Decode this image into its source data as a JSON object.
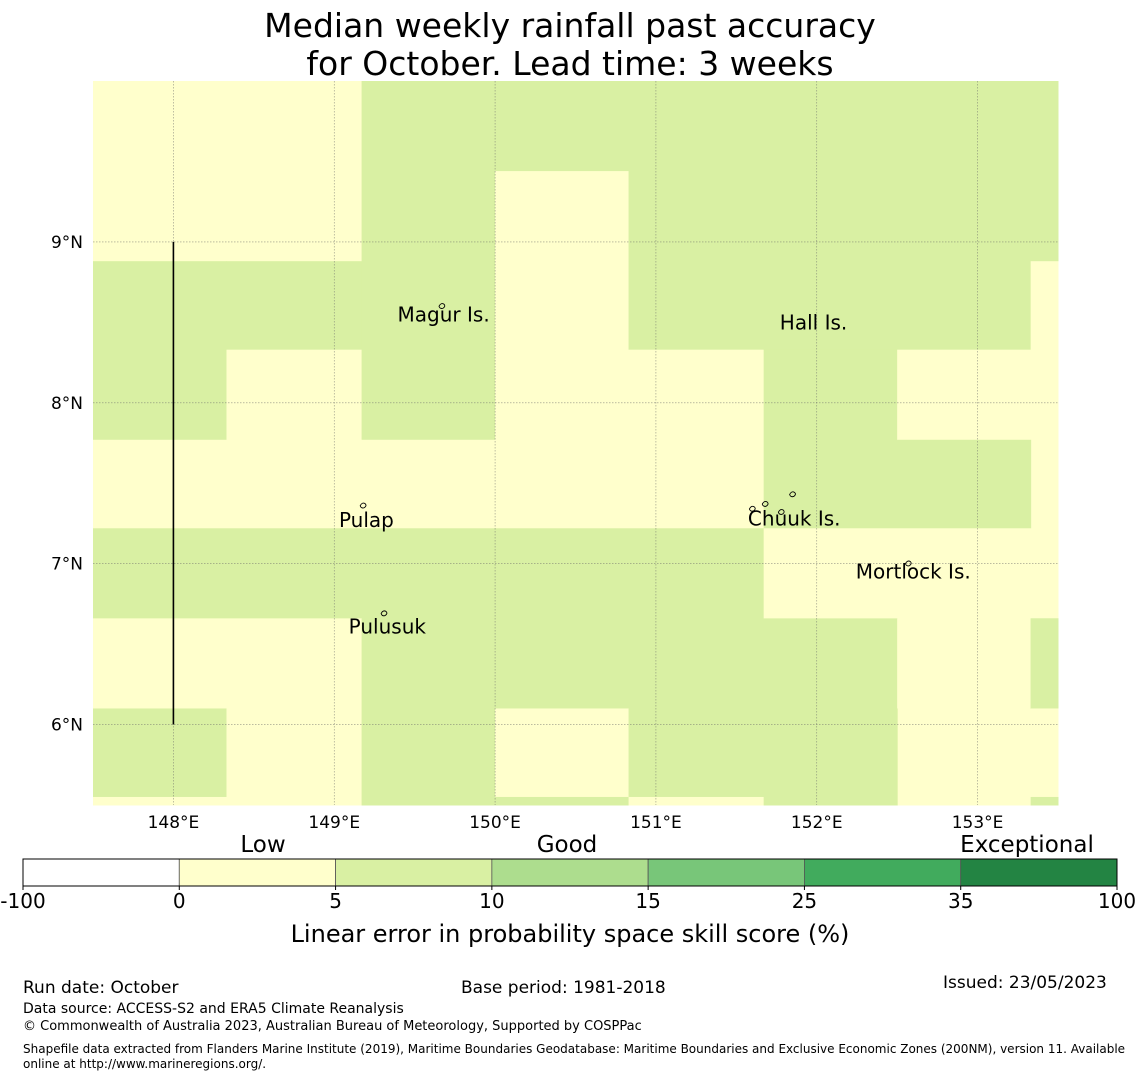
{
  "title": {
    "line1": "Median weekly rainfall past accuracy",
    "line2": "for October. Lead time: 3 weeks"
  },
  "map": {
    "lon_range": [
      147.5,
      153.5
    ],
    "lat_range": [
      5.5,
      10.0
    ],
    "lon_ticks": [
      148,
      149,
      150,
      151,
      152,
      153
    ],
    "lat_ticks": [
      9,
      8,
      7,
      6
    ],
    "lon_tick_labels": [
      "148°E",
      "149°E",
      "150°E",
      "151°E",
      "152°E",
      "153°E"
    ],
    "lat_tick_labels": [
      "9°N",
      "8°N",
      "7°N",
      "6°N"
    ],
    "grid": true,
    "cell_colors": {
      "low": "#ffffcc",
      "good5": "#d9f0a3"
    },
    "cells": [
      {
        "lon0": 147.5,
        "lon1": 149.17,
        "lat0": 9.0,
        "lat1": 10.0,
        "cat": "low"
      },
      {
        "lon0": 149.17,
        "lon1": 150.0,
        "lat0": 9.0,
        "lat1": 10.0,
        "cat": "good5"
      },
      {
        "lon0": 150.0,
        "lon1": 150.83,
        "lat0": 9.44,
        "lat1": 10.0,
        "cat": "good5"
      },
      {
        "lon0": 150.0,
        "lon1": 150.83,
        "lat0": 9.0,
        "lat1": 9.44,
        "cat": "low"
      },
      {
        "lon0": 150.83,
        "lon1": 153.5,
        "lat0": 9.0,
        "lat1": 10.0,
        "cat": "good5"
      },
      {
        "lon0": 147.5,
        "lon1": 149.17,
        "lat0": 8.88,
        "lat1": 9.0,
        "cat": "low"
      },
      {
        "lon0": 147.5,
        "lon1": 148.33,
        "lat0": 7.77,
        "lat1": 8.88,
        "cat": "good5"
      },
      {
        "lon0": 148.33,
        "lon1": 149.17,
        "lat0": 8.33,
        "lat1": 8.88,
        "cat": "good5"
      },
      {
        "lon0": 148.33,
        "lon1": 149.17,
        "lat0": 7.77,
        "lat1": 8.33,
        "cat": "low"
      },
      {
        "lon0": 149.17,
        "lon1": 150.0,
        "lat0": 7.77,
        "lat1": 9.0,
        "cat": "good5"
      },
      {
        "lon0": 150.0,
        "lon1": 150.83,
        "lat0": 7.22,
        "lat1": 9.0,
        "cat": "low"
      },
      {
        "lon0": 150.83,
        "lon1": 151.67,
        "lat0": 8.33,
        "lat1": 9.0,
        "cat": "good5"
      },
      {
        "lon0": 150.83,
        "lon1": 151.67,
        "lat0": 7.22,
        "lat1": 8.33,
        "cat": "low"
      },
      {
        "lon0": 151.67,
        "lon1": 153.33,
        "lat0": 8.33,
        "lat1": 9.0,
        "cat": "good5"
      },
      {
        "lon0": 153.33,
        "lon1": 153.5,
        "lat0": 8.88,
        "lat1": 9.0,
        "cat": "good5"
      },
      {
        "lon0": 153.33,
        "lon1": 153.5,
        "lat0": 7.22,
        "lat1": 8.88,
        "cat": "low"
      },
      {
        "lon0": 151.67,
        "lon1": 152.5,
        "lat0": 7.22,
        "lat1": 8.33,
        "cat": "good5"
      },
      {
        "lon0": 152.5,
        "lon1": 153.33,
        "lat0": 7.77,
        "lat1": 8.33,
        "cat": "low"
      },
      {
        "lon0": 152.5,
        "lon1": 153.33,
        "lat0": 7.22,
        "lat1": 7.77,
        "cat": "good5"
      },
      {
        "lon0": 147.5,
        "lon1": 149.17,
        "lat0": 7.22,
        "lat1": 7.77,
        "cat": "low"
      },
      {
        "lon0": 149.17,
        "lon1": 150.0,
        "lat0": 7.22,
        "lat1": 7.77,
        "cat": "low"
      },
      {
        "lon0": 147.5,
        "lon1": 151.67,
        "lat0": 6.66,
        "lat1": 7.22,
        "cat": "good5"
      },
      {
        "lon0": 151.67,
        "lon1": 153.5,
        "lat0": 6.66,
        "lat1": 7.22,
        "cat": "low"
      },
      {
        "lon0": 147.5,
        "lon1": 149.17,
        "lat0": 6.1,
        "lat1": 6.66,
        "cat": "low"
      },
      {
        "lon0": 149.17,
        "lon1": 152.5,
        "lat0": 6.1,
        "lat1": 6.66,
        "cat": "good5"
      },
      {
        "lon0": 152.5,
        "lon1": 153.33,
        "lat0": 5.5,
        "lat1": 6.66,
        "cat": "low"
      },
      {
        "lon0": 153.33,
        "lon1": 153.5,
        "lat0": 6.66,
        "lat1": 6.1,
        "cat": "good5"
      },
      {
        "lon0": 153.33,
        "lon1": 153.5,
        "lat0": 6.1,
        "lat1": 6.66,
        "cat": "good5"
      },
      {
        "lon0": 153.33,
        "lon1": 153.5,
        "lat0": 5.55,
        "lat1": 6.1,
        "cat": "low"
      },
      {
        "lon0": 153.33,
        "lon1": 153.5,
        "lat0": 5.5,
        "lat1": 5.55,
        "cat": "good5"
      },
      {
        "lon0": 147.5,
        "lon1": 148.33,
        "lat0": 5.55,
        "lat1": 6.1,
        "cat": "good5"
      },
      {
        "lon0": 147.5,
        "lon1": 148.33,
        "lat0": 5.5,
        "lat1": 5.55,
        "cat": "low"
      },
      {
        "lon0": 148.33,
        "lon1": 149.17,
        "lat0": 5.5,
        "lat1": 6.1,
        "cat": "low"
      },
      {
        "lon0": 149.17,
        "lon1": 150.0,
        "lat0": 5.5,
        "lat1": 6.1,
        "cat": "good5"
      },
      {
        "lon0": 150.0,
        "lon1": 150.83,
        "lat0": 5.55,
        "lat1": 6.1,
        "cat": "low"
      },
      {
        "lon0": 150.0,
        "lon1": 150.83,
        "lat0": 5.5,
        "lat1": 5.55,
        "cat": "good5"
      },
      {
        "lon0": 150.83,
        "lon1": 151.67,
        "lat0": 5.55,
        "lat1": 6.1,
        "cat": "good5"
      },
      {
        "lon0": 150.83,
        "lon1": 151.67,
        "lat0": 5.5,
        "lat1": 5.55,
        "cat": "low"
      },
      {
        "lon0": 151.67,
        "lon1": 152.5,
        "lat0": 5.5,
        "lat1": 6.1,
        "cat": "good5"
      }
    ],
    "meridian_line": {
      "lon": 148.0,
      "lat0": 6.0,
      "lat1": 9.0
    },
    "places": [
      {
        "name": "Magur Is.",
        "lon": 149.68,
        "lat": 8.55
      },
      {
        "name": "Hall Is.",
        "lon": 151.98,
        "lat": 8.5
      },
      {
        "name": "Pulap",
        "lon": 149.2,
        "lat": 7.27
      },
      {
        "name": "Chuuk Is.",
        "lon": 151.86,
        "lat": 7.28
      },
      {
        "name": "Mortlock Is.",
        "lon": 152.6,
        "lat": 6.95
      },
      {
        "name": "Pulusuk",
        "lon": 149.33,
        "lat": 6.61
      }
    ],
    "islands": [
      {
        "lon": 149.67,
        "lat": 8.6
      },
      {
        "lon": 149.18,
        "lat": 7.36
      },
      {
        "lon": 149.31,
        "lat": 6.69
      },
      {
        "lon": 151.6,
        "lat": 7.34
      },
      {
        "lon": 151.68,
        "lat": 7.37
      },
      {
        "lon": 151.78,
        "lat": 7.32
      },
      {
        "lon": 151.85,
        "lat": 7.43
      },
      {
        "lon": 152.57,
        "lat": 7.0
      }
    ]
  },
  "colorbar": {
    "category_labels": [
      "Low",
      "Good",
      "Exceptional"
    ],
    "boundaries": [
      "-100",
      "0",
      "5",
      "10",
      "15",
      "25",
      "35",
      "100"
    ],
    "colors": [
      "#ffffff",
      "#ffffcc",
      "#d9f0a3",
      "#addd8e",
      "#78c679",
      "#41ab5d",
      "#238443"
    ],
    "axis_label": "Linear error in probability space skill score (%)"
  },
  "footer": {
    "run_date": "Run date: October",
    "base_period": "Base period: 1981-2018",
    "issued": "Issued: 23/05/2023",
    "data_source": "Data source: ACCESS-S2 and ERA5 Climate Reanalysis",
    "copyright": "© Commonwealth of Australia 2023, Australian Bureau of Meteorology, Supported by COSPPac",
    "shapefile_line1": "Shapefile data extracted from Flanders Marine Institute (2019), Maritime Boundaries Geodatabase: Maritime Boundaries and Exclusive Economic Zones (200NM), version 11. Available",
    "shapefile_line2": "online at http://www.marineregions.org/."
  }
}
